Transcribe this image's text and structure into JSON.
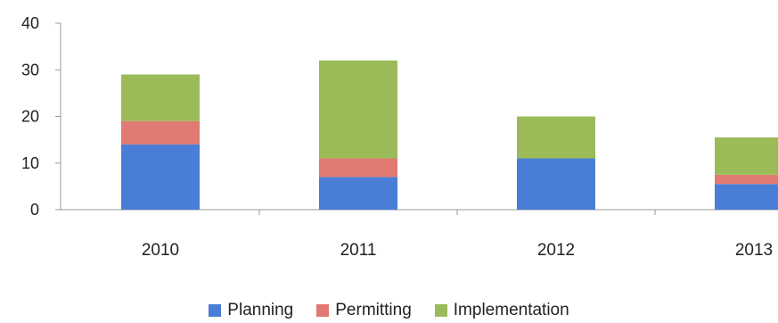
{
  "chart_data": {
    "type": "bar",
    "stacked": true,
    "categories": [
      "2010",
      "2011",
      "2012",
      "2013"
    ],
    "series": [
      {
        "name": "Planning",
        "color": "#4a7ed6",
        "values": [
          14,
          7,
          11,
          5.5
        ]
      },
      {
        "name": "Permitting",
        "color": "#e07a72",
        "values": [
          5,
          4,
          0,
          2
        ]
      },
      {
        "name": "Implementation",
        "color": "#9bbb59",
        "values": [
          10,
          21,
          9,
          8
        ]
      }
    ],
    "title": "",
    "xlabel": "",
    "ylabel": "",
    "ylim": [
      0,
      40
    ],
    "yticks": [
      "0",
      "10",
      "20",
      "30",
      "40"
    ],
    "grid": false,
    "legend_position": "bottom"
  }
}
